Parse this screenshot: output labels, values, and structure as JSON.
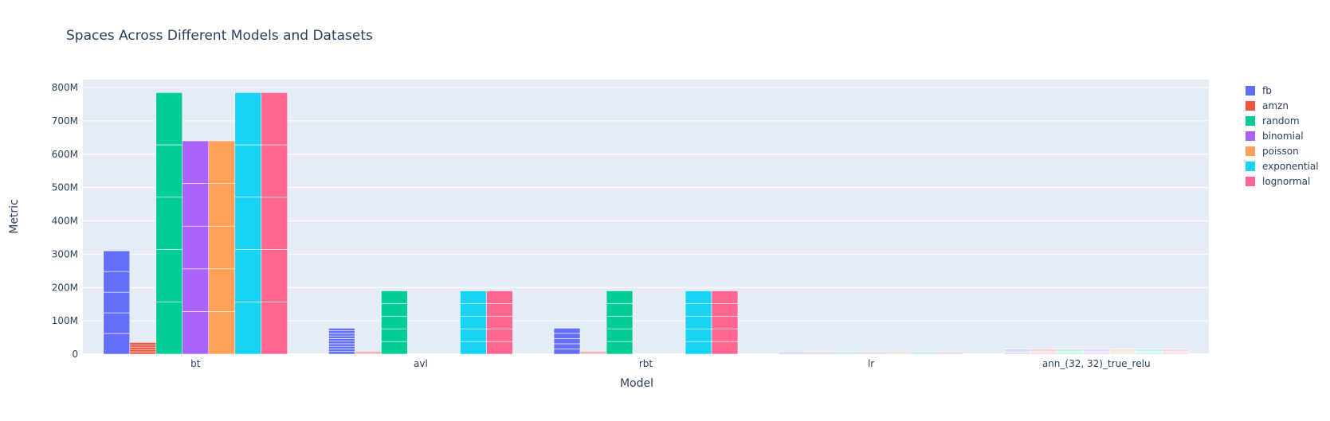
{
  "chart_data": {
    "type": "bar",
    "barmode": "group",
    "stacked_segments": true,
    "title": "Spaces Across Different Models and Datasets",
    "xlabel": "Model",
    "ylabel": "Metric",
    "ylim": [
      0,
      800000000
    ],
    "yticks": [
      0,
      100000000,
      200000000,
      300000000,
      400000000,
      500000000,
      600000000,
      700000000,
      800000000
    ],
    "ytick_labels": [
      "0",
      "100M",
      "200M",
      "300M",
      "400M",
      "500M",
      "600M",
      "700M",
      "800M"
    ],
    "grid": true,
    "legend_position": "top-right",
    "categories": [
      "bt",
      "avl",
      "rbt",
      "lr",
      "ann_(32, 32)_true_relu"
    ],
    "series": [
      {
        "name": "fb",
        "color": "#636efa",
        "values": [
          310000000,
          78000000,
          78000000,
          0,
          15000000
        ]
      },
      {
        "name": "amzn",
        "color": "#ef553b",
        "values": [
          35000000,
          9000000,
          9000000,
          0,
          15000000
        ]
      },
      {
        "name": "random",
        "color": "#00cc96",
        "values": [
          785000000,
          190000000,
          190000000,
          0,
          15000000
        ]
      },
      {
        "name": "binomial",
        "color": "#ab63fa",
        "values": [
          640000000,
          0,
          0,
          0,
          15000000
        ]
      },
      {
        "name": "poisson",
        "color": "#ffa15a",
        "values": [
          640000000,
          0,
          0,
          0,
          15000000
        ]
      },
      {
        "name": "exponential",
        "color": "#19d3f3",
        "values": [
          785000000,
          190000000,
          190000000,
          0,
          15000000
        ]
      },
      {
        "name": "lognormal",
        "color": "#ff6692",
        "values": [
          785000000,
          190000000,
          190000000,
          0,
          15000000
        ]
      }
    ],
    "segments": [
      [
        5,
        10,
        5,
        5,
        5
      ],
      [
        5,
        1,
        1,
        1,
        5
      ],
      [
        5,
        5,
        5,
        5,
        5
      ],
      [
        5,
        5,
        5,
        5,
        5
      ],
      [
        5,
        5,
        5,
        5,
        5
      ],
      [
        5,
        5,
        5,
        5,
        5
      ],
      [
        5,
        5,
        5,
        5,
        5
      ]
    ],
    "faded_categories": [
      "lr",
      "ann_(32, 32)_true_relu"
    ],
    "faded_series_in": {
      "amzn": [
        "avl",
        "rbt"
      ]
    }
  }
}
